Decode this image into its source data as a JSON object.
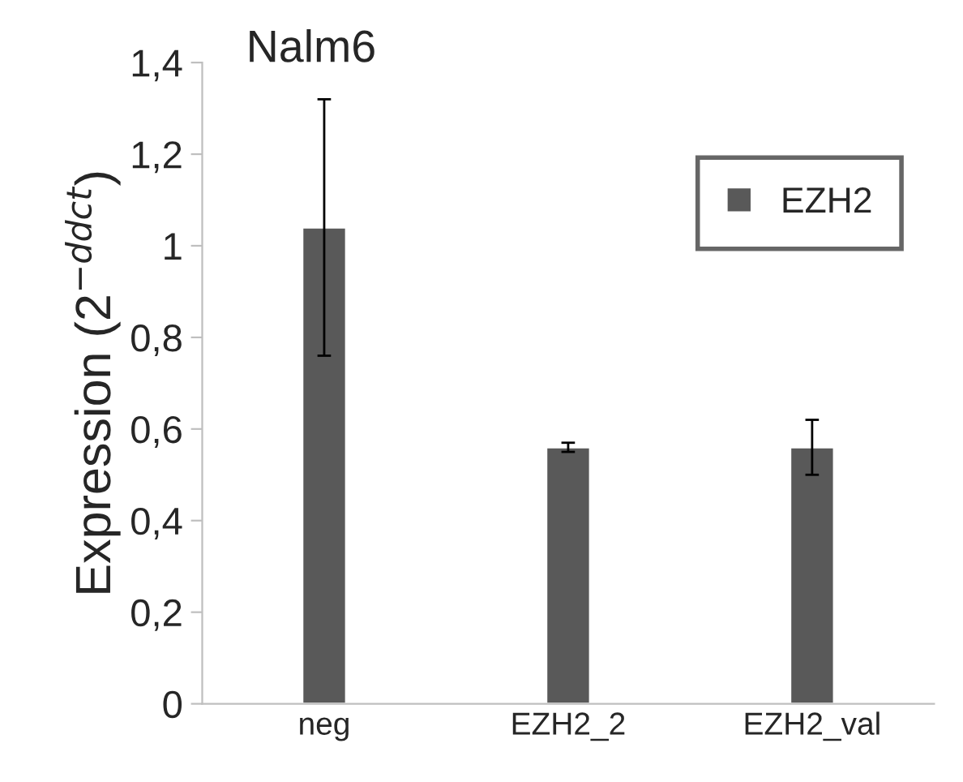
{
  "chart_data": {
    "type": "bar",
    "title": "Nalm6",
    "ylabel": "Expression (2$^{−ddct}$)",
    "categories": [
      "neg",
      "EZH2_2",
      "EZH2_val"
    ],
    "series": [
      {
        "name": "EZH2",
        "color": "#595959",
        "values": [
          1.04,
          0.56,
          0.56
        ],
        "errors": [
          0.28,
          0.01,
          0.06
        ]
      }
    ],
    "ylim": [
      0,
      1.4
    ],
    "yticks": [
      0,
      {
        "value": 0.2,
        "label": "0,2"
      },
      {
        "value": 0.4,
        "label": "0,4"
      },
      {
        "value": 0.6,
        "label": "0,6"
      },
      {
        "value": 0.8,
        "label": "0,8"
      },
      1,
      {
        "value": 1.2,
        "label": "1,2"
      },
      {
        "value": 1.4,
        "label": "1,4"
      }
    ],
    "grid": false,
    "legend": "top right"
  }
}
